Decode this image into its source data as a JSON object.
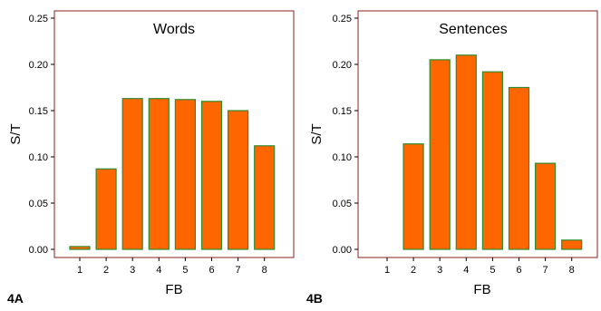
{
  "colors": {
    "bar_fill": "#FF6600",
    "bar_stroke": "#2E8B2E",
    "frame": "#8B2222",
    "tick_color": "#000000"
  },
  "chart_data": [
    {
      "type": "bar",
      "panel_label": "4A",
      "title": "Words",
      "xlabel": "FB",
      "ylabel": "S/T",
      "categories": [
        "1",
        "2",
        "3",
        "4",
        "5",
        "6",
        "7",
        "8"
      ],
      "values": [
        0.003,
        0.087,
        0.163,
        0.163,
        0.162,
        0.16,
        0.15,
        0.112
      ],
      "ylim": [
        0,
        0.25
      ],
      "yticks": [
        "0.00",
        "0.05",
        "0.10",
        "0.15",
        "0.20",
        "0.25"
      ],
      "grid": false,
      "legend": "none"
    },
    {
      "type": "bar",
      "panel_label": "4B",
      "title": "Sentences",
      "xlabel": "FB",
      "ylabel": "S/T",
      "categories": [
        "1",
        "2",
        "3",
        "4",
        "5",
        "6",
        "7",
        "8"
      ],
      "values": [
        0,
        0.114,
        0.205,
        0.21,
        0.192,
        0.175,
        0.093,
        0.01
      ],
      "ylim": [
        0,
        0.25
      ],
      "yticks": [
        "0.00",
        "0.05",
        "0.10",
        "0.15",
        "0.20",
        "0.25"
      ],
      "grid": false,
      "legend": "none"
    }
  ]
}
